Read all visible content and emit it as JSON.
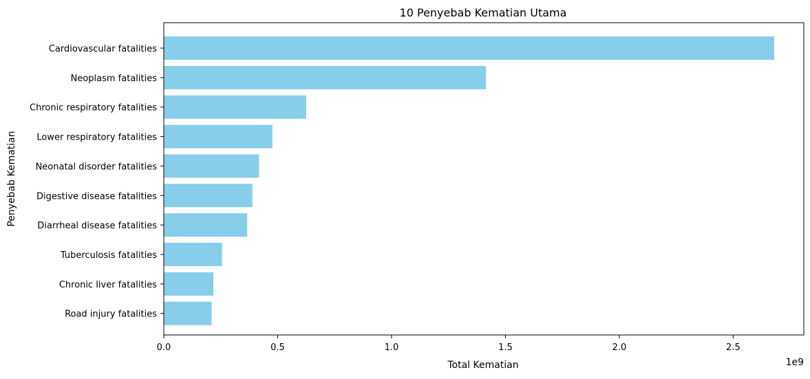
{
  "chart_data": {
    "type": "bar",
    "orientation": "horizontal",
    "title": "10 Penyebab Kematian Utama",
    "xlabel": "Total Kematian",
    "ylabel": "Penyebab Kematian",
    "x_offset_label": "1e9",
    "xlim": [
      0,
      2.81
    ],
    "x_ticks": [
      0.0,
      0.5,
      1.0,
      1.5,
      2.0,
      2.5
    ],
    "x_tick_labels": [
      "0.0",
      "0.5",
      "1.0",
      "1.5",
      "2.0",
      "2.5"
    ],
    "categories": [
      "Cardiovascular fatalities",
      "Neoplasm fatalities",
      "Chronic respiratory fatalities",
      "Lower respiratory fatalities",
      "Neonatal disorder fatalities",
      "Digestive disease fatalities",
      "Diarrheal disease fatalities",
      "Tuberculosis fatalities",
      "Chronic liver fatalities",
      "Road injury fatalities"
    ],
    "values": [
      2.68,
      1.415,
      0.625,
      0.477,
      0.418,
      0.389,
      0.366,
      0.256,
      0.218,
      0.21
    ],
    "value_scale": 1000000000,
    "bar_color": "#87CEEB",
    "grid": false,
    "legend": "none"
  }
}
